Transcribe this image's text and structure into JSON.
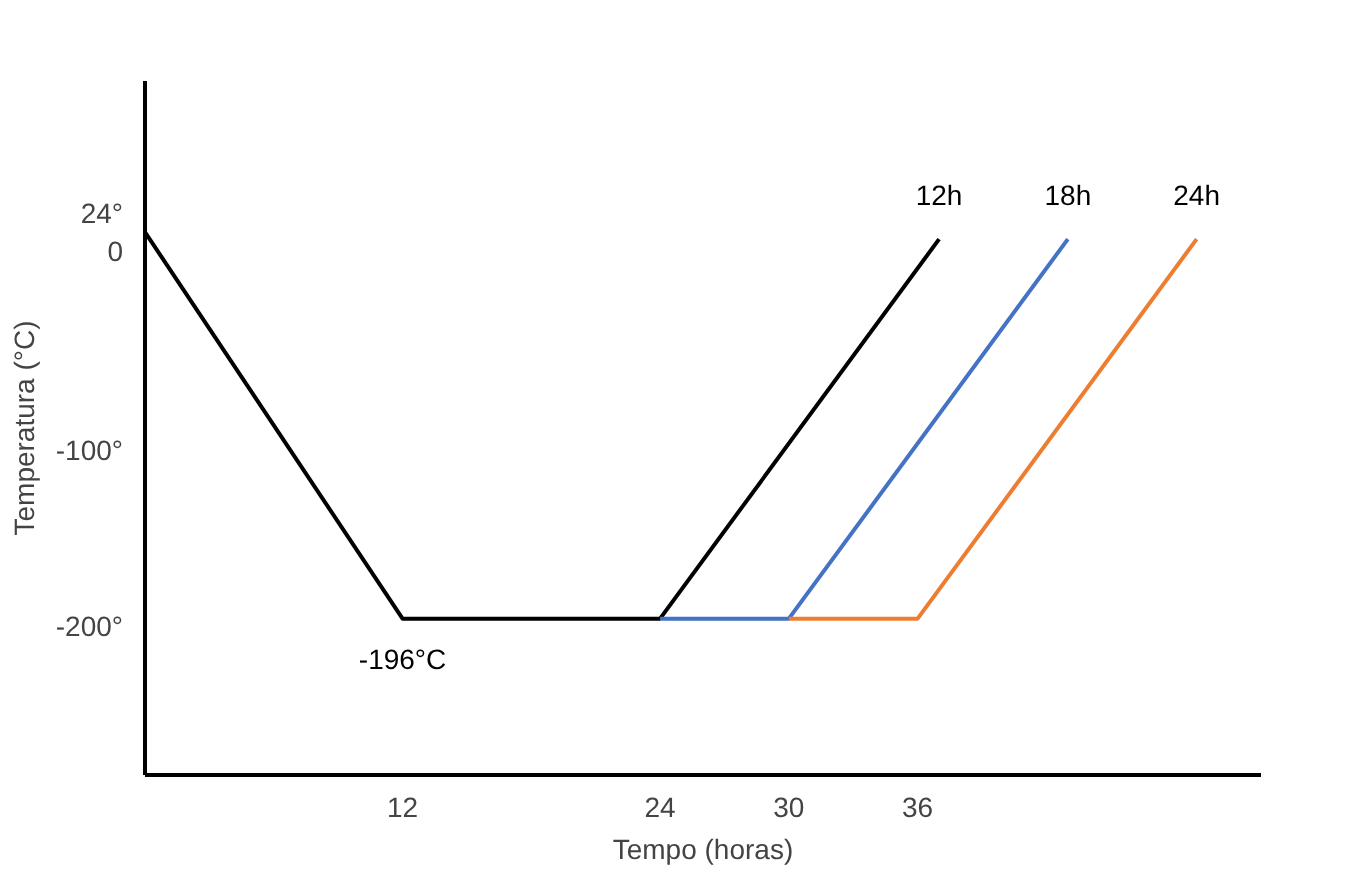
{
  "chart_data": {
    "type": "line",
    "xlabel": "Tempo (horas)",
    "ylabel": "Temperatura (°C)",
    "xlim": [
      0,
      52
    ],
    "ylim": [
      -285,
      110
    ],
    "xticks": [
      12,
      24,
      30,
      36
    ],
    "yticks": [
      {
        "value": 24,
        "label": "24°\n0"
      },
      {
        "value": -100,
        "label": "-100°"
      },
      {
        "value": -200,
        "label": "-200°"
      }
    ],
    "grid": false,
    "marker": "none",
    "line_style": "solid",
    "series": [
      {
        "name": "12h",
        "color": "#000000",
        "x": [
          0,
          12,
          24,
          37
        ],
        "values": [
          24,
          -196,
          -196,
          20
        ]
      },
      {
        "name": "18h",
        "color": "#4472c4",
        "x": [
          24,
          30,
          43
        ],
        "values": [
          -196,
          -196,
          20
        ]
      },
      {
        "name": "24h",
        "color": "#ed7d31",
        "x": [
          30,
          36,
          49
        ],
        "values": [
          -196,
          -196,
          20
        ]
      }
    ],
    "annotations": [
      {
        "text": "-196°C",
        "x": 12,
        "y": -196
      }
    ]
  }
}
